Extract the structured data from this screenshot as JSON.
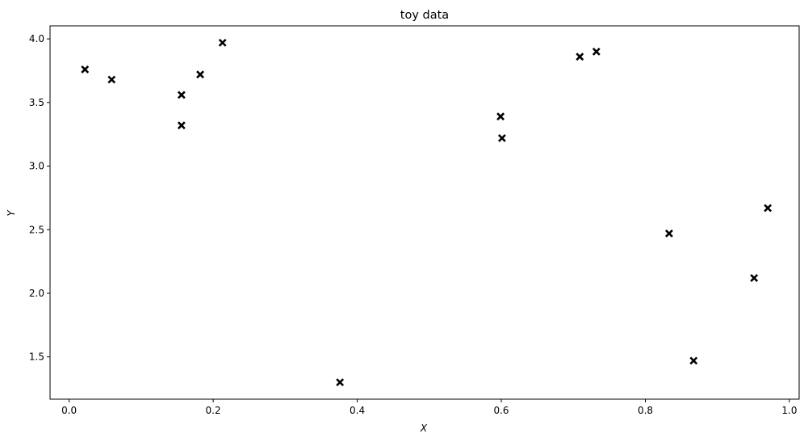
{
  "chart_data": {
    "type": "scatter",
    "title": "toy data",
    "xlabel": "X",
    "ylabel": "Y",
    "xlim": [
      -0.0265,
      1.0135
    ],
    "ylim": [
      1.1675,
      4.1025
    ],
    "xticks": [
      0.0,
      0.2,
      0.4,
      0.6,
      0.8,
      1.0
    ],
    "xtick_labels": [
      "0.0",
      "0.2",
      "0.4",
      "0.6",
      "0.8",
      "1.0"
    ],
    "yticks": [
      1.5,
      2.0,
      2.5,
      3.0,
      3.5,
      4.0
    ],
    "ytick_labels": [
      "1.5",
      "2.0",
      "2.5",
      "3.0",
      "3.5",
      "4.0"
    ],
    "grid": false,
    "marker": "x",
    "marker_color": "#000000",
    "points": [
      {
        "x": 0.022,
        "y": 3.76
      },
      {
        "x": 0.059,
        "y": 3.68
      },
      {
        "x": 0.156,
        "y": 3.56
      },
      {
        "x": 0.156,
        "y": 3.32
      },
      {
        "x": 0.182,
        "y": 3.72
      },
      {
        "x": 0.213,
        "y": 3.97
      },
      {
        "x": 0.376,
        "y": 1.3
      },
      {
        "x": 0.599,
        "y": 3.39
      },
      {
        "x": 0.601,
        "y": 3.22
      },
      {
        "x": 0.709,
        "y": 3.86
      },
      {
        "x": 0.732,
        "y": 3.9
      },
      {
        "x": 0.833,
        "y": 2.47
      },
      {
        "x": 0.867,
        "y": 1.47
      },
      {
        "x": 0.951,
        "y": 2.12
      },
      {
        "x": 0.97,
        "y": 2.67
      }
    ]
  }
}
